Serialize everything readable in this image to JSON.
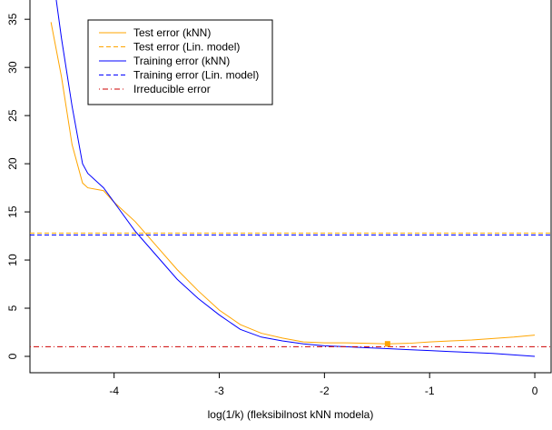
{
  "chart_data": {
    "type": "line",
    "xlabel": "log(1/k) (fleksibilnost kNN modela)",
    "xlim": [
      -4.8,
      0.155
    ],
    "ylim": [
      -1.7,
      37
    ],
    "xticks": [
      -4,
      -3,
      -2,
      -1,
      0
    ],
    "yticks": [
      0,
      5,
      10,
      15,
      20,
      25,
      30,
      35
    ],
    "series": [
      {
        "name": "Test error (kNN)",
        "color": "#FFA500",
        "dash": "solid",
        "x": [
          -4.6,
          -4.5,
          -4.4,
          -4.3,
          -4.25,
          -4.1,
          -4.0,
          -3.8,
          -3.6,
          -3.4,
          -3.2,
          -3.0,
          -2.8,
          -2.6,
          -2.4,
          -2.2,
          -2.0,
          -1.8,
          -1.6,
          -1.4,
          -1.2,
          -1.0,
          -0.8,
          -0.6,
          -0.4,
          -0.2,
          0
        ],
        "values": [
          34.7,
          29,
          22,
          18,
          17.5,
          17.2,
          16,
          14,
          11.5,
          9,
          6.8,
          4.8,
          3.3,
          2.4,
          1.9,
          1.5,
          1.4,
          1.4,
          1.35,
          1.3,
          1.35,
          1.5,
          1.6,
          1.7,
          1.85,
          2.0,
          2.2
        ]
      },
      {
        "name": "Test error (Lin. model)",
        "color": "#FFA500",
        "dash": "dashed",
        "hline": 12.8
      },
      {
        "name": "Training error (kNN)",
        "color": "#0000FF",
        "dash": "solid",
        "x": [
          -4.55,
          -4.5,
          -4.4,
          -4.3,
          -4.25,
          -4.1,
          -4.0,
          -3.8,
          -3.6,
          -3.4,
          -3.2,
          -3.0,
          -2.8,
          -2.6,
          -2.4,
          -2.2,
          -2.0,
          -1.8,
          -1.6,
          -1.4,
          -1.2,
          -1.0,
          -0.8,
          -0.6,
          -0.4,
          -0.2,
          0
        ],
        "values": [
          37,
          33,
          26,
          20,
          19,
          17.5,
          16,
          13,
          10.5,
          8,
          6.0,
          4.3,
          2.8,
          2.0,
          1.6,
          1.3,
          1.1,
          1.0,
          0.9,
          0.8,
          0.7,
          0.6,
          0.5,
          0.4,
          0.3,
          0.15,
          0
        ]
      },
      {
        "name": "Training error (Lin. model)",
        "color": "#0000FF",
        "dash": "dashed",
        "hline": 12.6
      },
      {
        "name": "Irreducible error",
        "color": "#CD0000",
        "dash": "dotdash",
        "hline": 1.0
      }
    ],
    "min_point": {
      "x": -1.4,
      "y": 1.3,
      "color": "#FFA500"
    }
  }
}
